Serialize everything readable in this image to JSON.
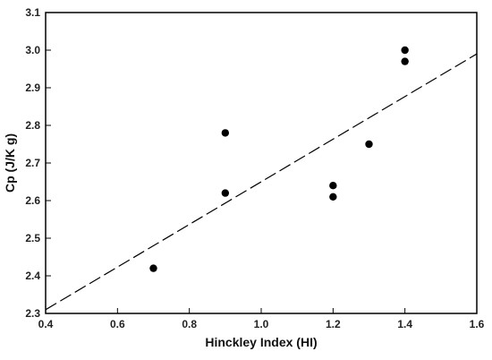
{
  "chart_data": {
    "type": "scatter",
    "title": "",
    "xlabel": "Hinckley Index (HI)",
    "ylabel": "Cp (J/K g)",
    "xlim": [
      0.4,
      1.6
    ],
    "ylim": [
      2.3,
      3.1
    ],
    "xticks": [
      "0.4",
      "0.6",
      "0.8",
      "1.0",
      "1.2",
      "1.4",
      "1.6"
    ],
    "yticks": [
      "2.3",
      "2.4",
      "2.5",
      "2.6",
      "2.7",
      "2.8",
      "2.9",
      "3.0",
      "3.1"
    ],
    "grid": false,
    "legend": "none",
    "series": [
      {
        "style": "markers",
        "color": "#000000",
        "points": [
          {
            "x": 0.7,
            "y": 2.42
          },
          {
            "x": 0.9,
            "y": 2.62
          },
          {
            "x": 0.9,
            "y": 2.78
          },
          {
            "x": 1.2,
            "y": 2.61
          },
          {
            "x": 1.2,
            "y": 2.64
          },
          {
            "x": 1.3,
            "y": 2.75
          },
          {
            "x": 1.4,
            "y": 2.97
          },
          {
            "x": 1.4,
            "y": 3.0
          }
        ]
      },
      {
        "style": "dashed-line",
        "color": "#000000",
        "points": [
          {
            "x": 0.4,
            "y": 2.31
          },
          {
            "x": 1.6,
            "y": 2.99
          }
        ]
      }
    ]
  }
}
